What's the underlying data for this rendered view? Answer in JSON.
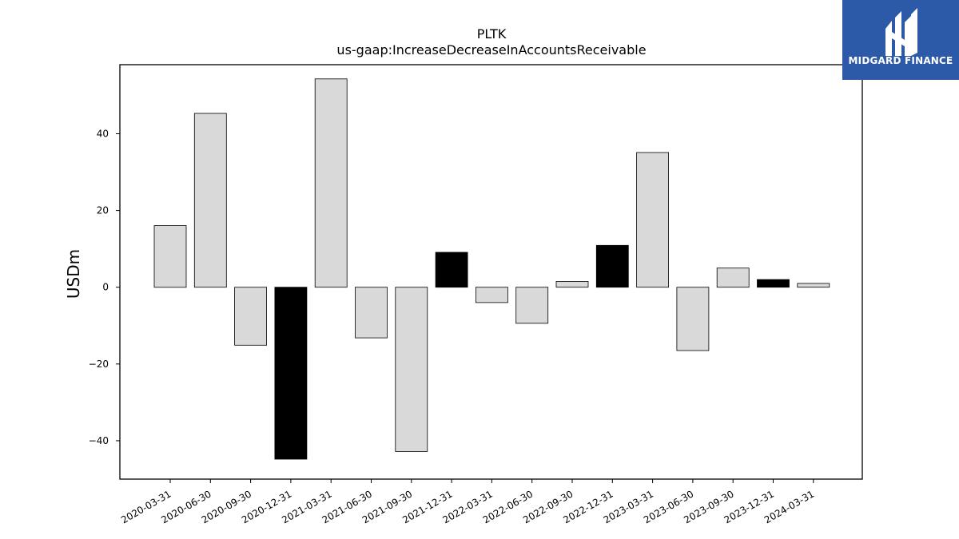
{
  "chart_data": {
    "type": "bar",
    "title": "PLTK",
    "subtitle": "us-gaap:IncreaseDecreaseInAccountsReceivable",
    "ylabel": "USDm",
    "xlabel": "",
    "ylim": [
      -50,
      58
    ],
    "yticks": [
      -40,
      -20,
      0,
      20,
      40
    ],
    "ytick_labels": [
      "−40",
      "−20",
      "0",
      "20",
      "40"
    ],
    "categories": [
      "2020-03-31",
      "2020-06-30",
      "2020-09-30",
      "2020-12-31",
      "2021-03-31",
      "2021-06-30",
      "2021-09-30",
      "2021-12-31",
      "2022-03-31",
      "2022-06-30",
      "2022-09-30",
      "2022-12-31",
      "2023-03-31",
      "2023-06-30",
      "2023-09-30",
      "2023-12-31",
      "2024-03-31"
    ],
    "values": [
      16.1,
      45.3,
      -15.1,
      -44.8,
      54.3,
      -13.2,
      -42.8,
      9.1,
      -4.0,
      -9.4,
      1.5,
      10.9,
      35.1,
      -16.5,
      5.0,
      2.0,
      1.0
    ],
    "highlight": [
      false,
      false,
      false,
      true,
      false,
      false,
      false,
      true,
      false,
      false,
      false,
      true,
      false,
      false,
      false,
      true,
      false
    ],
    "colors": {
      "bar": "#d9d9d9",
      "highlight": "#000000",
      "edge": "#000000"
    },
    "grid": false,
    "legend": "none"
  },
  "logo": {
    "text": "MIDGARD FINANCE",
    "color": "#2d5aa8"
  }
}
